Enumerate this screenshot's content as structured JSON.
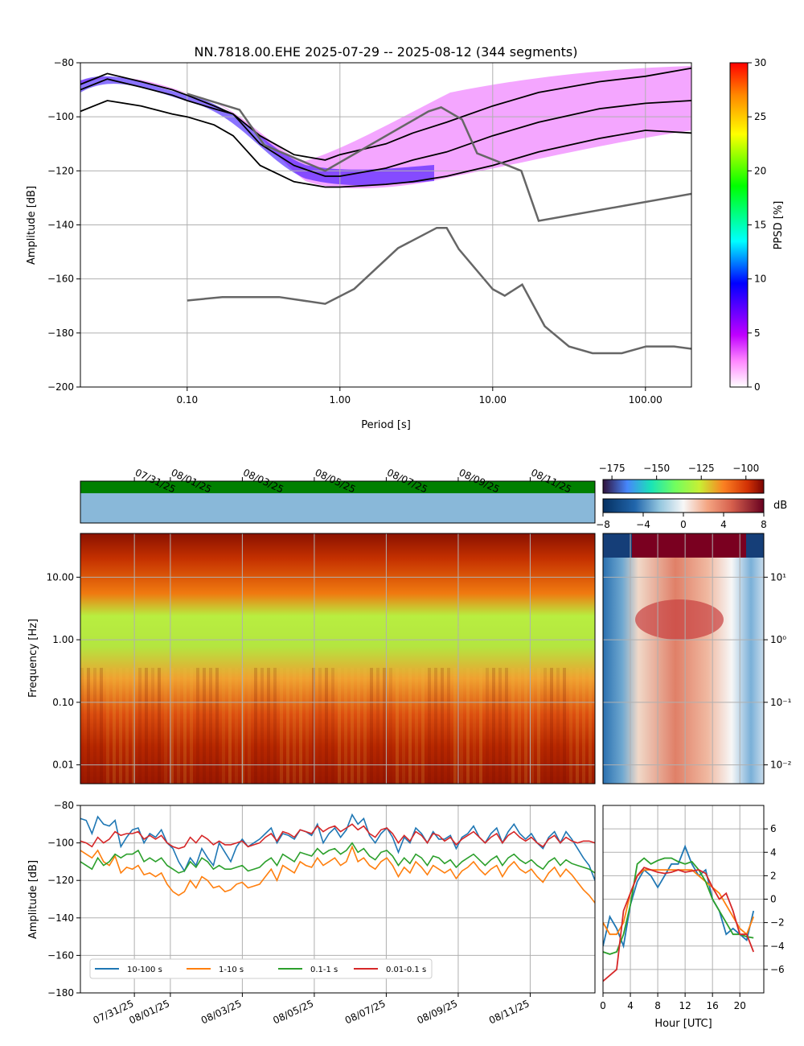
{
  "chart_data": [
    {
      "type": "heatmap",
      "panel": "ppsd",
      "title": "NN.7818.00.EHE   2025-07-29 -- 2025-08-12  (344 segments)",
      "xlabel": "Period [s]",
      "ylabel": "Amplitude [dB]",
      "x_scale": "log",
      "xlim": [
        0.02,
        200
      ],
      "ylim": [
        -200,
        -80
      ],
      "x_ticks": [
        0.1,
        1,
        10,
        100
      ],
      "x_tick_labels": [
        "0.10",
        "1.00",
        "10.00",
        "100.00"
      ],
      "y_ticks": [
        -200,
        -180,
        -160,
        -140,
        -120,
        -100,
        -80
      ],
      "grid": true,
      "colorbar": {
        "label": "PPSD [%]",
        "range": [
          0,
          30
        ],
        "ticks": [
          0,
          5,
          10,
          15,
          20,
          25,
          30
        ]
      },
      "lines": [
        {
          "name": "percentile-low",
          "x": [
            0.02,
            0.03,
            0.05,
            0.08,
            0.1,
            0.15,
            0.2,
            0.3,
            0.5,
            0.8,
            1,
            2,
            3,
            5,
            10,
            20,
            50,
            100,
            200
          ],
          "y": [
            -98,
            -94,
            -96,
            -99,
            -100,
            -103,
            -107,
            -118,
            -124,
            -126,
            -126,
            -125,
            -124,
            -122,
            -118,
            -113,
            -108,
            -105,
            -106
          ]
        },
        {
          "name": "percentile-median",
          "x": [
            0.02,
            0.03,
            0.05,
            0.08,
            0.1,
            0.15,
            0.2,
            0.3,
            0.5,
            0.8,
            1,
            2,
            3,
            5,
            10,
            20,
            50,
            100,
            200
          ],
          "y": [
            -90,
            -86,
            -89,
            -92,
            -94,
            -97,
            -99,
            -110,
            -118,
            -122,
            -122,
            -119,
            -116,
            -113,
            -107,
            -102,
            -97,
            -95,
            -94
          ]
        },
        {
          "name": "percentile-high",
          "x": [
            0.02,
            0.03,
            0.05,
            0.08,
            0.1,
            0.15,
            0.2,
            0.3,
            0.5,
            0.8,
            1,
            2,
            3,
            5,
            10,
            20,
            50,
            100,
            200
          ],
          "y": [
            -88,
            -84,
            -87,
            -90,
            -92,
            -96,
            -99,
            -107,
            -114,
            -116,
            -114,
            -110,
            -106,
            -102,
            -96,
            -91,
            -87,
            -85,
            -82
          ]
        },
        {
          "name": "new-high-noise-model",
          "x": [
            0.1,
            0.22,
            0.32,
            0.8,
            3.8,
            4.6,
            6.3,
            7.9,
            15.4,
            20,
            354.8
          ],
          "y": [
            -91.5,
            -97.4,
            -110.5,
            -120,
            -98,
            -96.5,
            -101,
            -113.5,
            -120,
            -138.5,
            -126
          ]
        },
        {
          "name": "new-low-noise-model",
          "x": [
            0.1,
            0.17,
            0.4,
            0.8,
            1.24,
            2.4,
            4.3,
            5,
            6,
            10,
            12,
            15.6,
            21.9,
            31.6,
            45,
            70,
            101,
            154,
            328
          ],
          "y": [
            -168,
            -166.7,
            -166.7,
            -169.2,
            -163.7,
            -148.6,
            -141.1,
            -141.1,
            -149,
            -163.8,
            -166.2,
            -162.1,
            -177.5,
            -185,
            -187.5,
            -187.5,
            -185,
            -185,
            -187.5
          ]
        }
      ]
    },
    {
      "type": "heatmap",
      "panel": "spectrogram",
      "ylabel": "Frequency [Hz]",
      "y_scale": "log",
      "ylim": [
        0.005,
        50
      ],
      "y_ticks": [
        0.01,
        0.1,
        1,
        10
      ],
      "y_tick_labels": [
        "0.01",
        "0.10",
        "1.00",
        "10.00"
      ],
      "x_tick_labels": [
        "07/31/25",
        "08/01/25",
        "08/03/25",
        "08/05/25",
        "08/07/25",
        "08/09/25",
        "08/11/25"
      ],
      "colorbar": {
        "range": [
          -180,
          -90
        ],
        "ticks": [
          -175,
          -150,
          -125,
          -100
        ]
      }
    },
    {
      "type": "heatmap",
      "panel": "diurnal-spectrogram",
      "y_scale": "log",
      "y_ticks": [
        0.01,
        0.1,
        1,
        10
      ],
      "y_tick_labels": [
        "10⁻²",
        "10⁻¹",
        "10⁰",
        "10¹"
      ],
      "colorbar": {
        "label": "dB",
        "range": [
          -8,
          8
        ],
        "ticks": [
          -8,
          -4,
          0,
          4,
          8
        ]
      }
    },
    {
      "type": "line",
      "panel": "band-timeseries",
      "xlabel": "",
      "ylabel": "Amplitude [dB]",
      "ylim": [
        -180,
        -80
      ],
      "y_ticks": [
        -180,
        -160,
        -140,
        -120,
        -100,
        -80
      ],
      "x_tick_labels": [
        "07/31/25",
        "08/01/25",
        "08/03/25",
        "08/05/25",
        "08/07/25",
        "08/09/25",
        "08/11/25"
      ],
      "x_tick_days": [
        1.5,
        2.5,
        4.5,
        6.5,
        8.5,
        10.5,
        12.5
      ],
      "x_range_days": [
        0,
        14.3
      ],
      "grid": true,
      "legend_position": "lower-left",
      "series": [
        {
          "name": "10-100 s",
          "color": "#1f77b4",
          "values": [
            -87,
            -88,
            -95,
            -86,
            -90,
            -91,
            -88,
            -102,
            -97,
            -93,
            -92,
            -100,
            -95,
            -97,
            -93,
            -100,
            -103,
            -110,
            -115,
            -108,
            -112,
            -103,
            -108,
            -112,
            -100,
            -105,
            -110,
            -102,
            -98,
            -102,
            -100,
            -98,
            -95,
            -92,
            -100,
            -95,
            -96,
            -98,
            -93,
            -94,
            -96,
            -90,
            -100,
            -95,
            -92,
            -97,
            -93,
            -85,
            -90,
            -87,
            -96,
            -100,
            -95,
            -92,
            -97,
            -105,
            -97,
            -100,
            -92,
            -95,
            -100,
            -94,
            -98,
            -98,
            -96,
            -103,
            -97,
            -95,
            -91,
            -97,
            -100,
            -95,
            -92,
            -100,
            -94,
            -90,
            -95,
            -98,
            -95,
            -100,
            -103,
            -97,
            -94,
            -100,
            -94,
            -98,
            -103,
            -108,
            -112,
            -120
          ]
        },
        {
          "name": "1-10 s",
          "color": "#ff7f0e",
          "values": [
            -104,
            -106,
            -108,
            -104,
            -110,
            -112,
            -107,
            -116,
            -113,
            -114,
            -112,
            -117,
            -116,
            -118,
            -116,
            -122,
            -126,
            -128,
            -126,
            -120,
            -124,
            -118,
            -120,
            -124,
            -123,
            -126,
            -125,
            -122,
            -121,
            -124,
            -123,
            -122,
            -118,
            -114,
            -120,
            -112,
            -114,
            -116,
            -110,
            -112,
            -113,
            -108,
            -112,
            -110,
            -108,
            -112,
            -110,
            -102,
            -110,
            -108,
            -112,
            -114,
            -110,
            -108,
            -112,
            -118,
            -113,
            -116,
            -110,
            -113,
            -117,
            -112,
            -114,
            -116,
            -114,
            -119,
            -115,
            -113,
            -110,
            -114,
            -117,
            -114,
            -112,
            -118,
            -113,
            -110,
            -114,
            -116,
            -114,
            -118,
            -121,
            -116,
            -113,
            -118,
            -114,
            -117,
            -121,
            -125,
            -128,
            -132
          ]
        },
        {
          "name": "0.1-1 s",
          "color": "#2ca02c",
          "values": [
            -110,
            -112,
            -114,
            -108,
            -112,
            -110,
            -106,
            -108,
            -106,
            -106,
            -104,
            -110,
            -108,
            -110,
            -108,
            -112,
            -114,
            -116,
            -115,
            -110,
            -113,
            -108,
            -110,
            -114,
            -112,
            -114,
            -114,
            -113,
            -112,
            -115,
            -114,
            -113,
            -110,
            -108,
            -112,
            -106,
            -108,
            -110,
            -105,
            -106,
            -107,
            -103,
            -106,
            -104,
            -103,
            -106,
            -104,
            -100,
            -105,
            -103,
            -107,
            -109,
            -105,
            -104,
            -107,
            -112,
            -108,
            -111,
            -106,
            -108,
            -112,
            -107,
            -108,
            -111,
            -109,
            -113,
            -110,
            -108,
            -106,
            -109,
            -112,
            -109,
            -107,
            -112,
            -108,
            -106,
            -109,
            -111,
            -109,
            -112,
            -114,
            -110,
            -108,
            -112,
            -109,
            -111,
            -112,
            -113,
            -114,
            -116
          ]
        },
        {
          "name": "0.01-0.1 s",
          "color": "#d62728",
          "values": [
            -99,
            -100,
            -102,
            -97,
            -100,
            -98,
            -94,
            -96,
            -95,
            -95,
            -94,
            -98,
            -96,
            -98,
            -96,
            -100,
            -102,
            -103,
            -102,
            -97,
            -100,
            -96,
            -98,
            -101,
            -99,
            -101,
            -101,
            -100,
            -99,
            -102,
            -101,
            -100,
            -97,
            -95,
            -99,
            -94,
            -95,
            -97,
            -93,
            -94,
            -95,
            -91,
            -94,
            -92,
            -91,
            -94,
            -92,
            -90,
            -93,
            -91,
            -95,
            -97,
            -93,
            -92,
            -95,
            -100,
            -96,
            -99,
            -94,
            -96,
            -100,
            -95,
            -96,
            -99,
            -97,
            -101,
            -98,
            -96,
            -94,
            -97,
            -100,
            -97,
            -95,
            -100,
            -96,
            -94,
            -97,
            -99,
            -97,
            -100,
            -102,
            -98,
            -96,
            -100,
            -97,
            -99,
            -100,
            -99,
            -99,
            -100
          ]
        }
      ]
    },
    {
      "type": "line",
      "panel": "diurnal-band-averages",
      "xlabel": "Hour [UTC]",
      "xlim": [
        0,
        23.5
      ],
      "ylim": [
        -8,
        8
      ],
      "x_ticks": [
        0,
        4,
        8,
        12,
        16,
        20
      ],
      "y_ticks": [
        -6,
        -4,
        -2,
        0,
        2,
        4,
        6
      ],
      "grid": true,
      "x": [
        0,
        1,
        2,
        3,
        4,
        5,
        6,
        7,
        8,
        9,
        10,
        11,
        12,
        13,
        14,
        15,
        16,
        17,
        18,
        19,
        20,
        21,
        22
      ],
      "series": [
        {
          "name": "10-100 s",
          "color": "#1f77b4",
          "values": [
            -4,
            -1.5,
            -2.5,
            -4,
            -0.5,
            1.5,
            2.5,
            2,
            1,
            2,
            3,
            3,
            4.5,
            3,
            2,
            2.5,
            0,
            -1,
            -3,
            -2.5,
            -3,
            -3.5,
            -1
          ]
        },
        {
          "name": "1-10 s",
          "color": "#ff7f0e",
          "values": [
            -2,
            -3,
            -3,
            -2,
            0.5,
            2,
            2.5,
            2.5,
            2.5,
            2.5,
            2.5,
            2.5,
            2.5,
            2.5,
            2,
            1.5,
            1,
            0.5,
            -0.5,
            -1.5,
            -2.5,
            -3,
            -1.5
          ]
        },
        {
          "name": "0.1-1 s",
          "color": "#2ca02c",
          "values": [
            -4.5,
            -4.7,
            -4.5,
            -3,
            -0.5,
            3,
            3.5,
            3,
            3.3,
            3.5,
            3.5,
            3.2,
            3,
            3.2,
            2.5,
            1.5,
            0,
            -1,
            -2,
            -3,
            -3,
            -3.2,
            -3.3
          ]
        },
        {
          "name": "0.01-0.1 s",
          "color": "#d62728",
          "values": [
            -7,
            -6.5,
            -6,
            -1,
            0.5,
            2,
            2.7,
            2.5,
            2.3,
            2.2,
            2.3,
            2.5,
            2.3,
            2.4,
            2.5,
            2.2,
            1,
            0,
            0.5,
            -1,
            -3,
            -3,
            -4.5
          ]
        }
      ]
    }
  ]
}
